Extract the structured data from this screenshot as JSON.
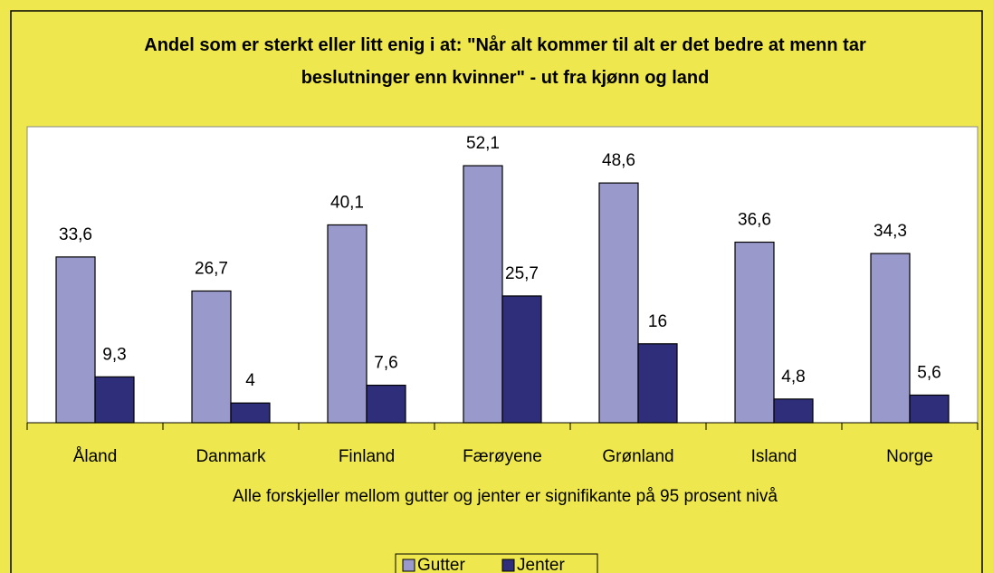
{
  "chart_data": {
    "type": "bar",
    "title": "Andel som er sterkt eller litt enig i at: \"Når alt kommer til alt er det bedre at menn tar beslutninger enn kvinner\" - ut fra kjønn og land",
    "x_label": "Alle forskjeller mellom gutter og jenter er signifikante på 95 prosent nivå",
    "categories": [
      "Åland",
      "Danmark",
      "Finland",
      "Færøyene",
      "Grønland",
      "Island",
      "Norge"
    ],
    "series": [
      {
        "name": "Gutter",
        "color": "#9999cc",
        "values": [
          33.6,
          26.7,
          40.1,
          52.1,
          48.6,
          36.6,
          34.3
        ],
        "value_labels": [
          "33,6",
          "26,7",
          "40,1",
          "52,1",
          "48,6",
          "36,6",
          "34,3"
        ]
      },
      {
        "name": "Jenter",
        "color": "#2e2e7a",
        "values": [
          9.3,
          4,
          7.6,
          25.7,
          16,
          4.8,
          5.6
        ],
        "value_labels": [
          "9,3",
          "4",
          "7,6",
          "25,7",
          "16",
          "4,8",
          "5,6"
        ]
      }
    ],
    "ylim": [
      0,
      60
    ],
    "legend": "bottom"
  }
}
